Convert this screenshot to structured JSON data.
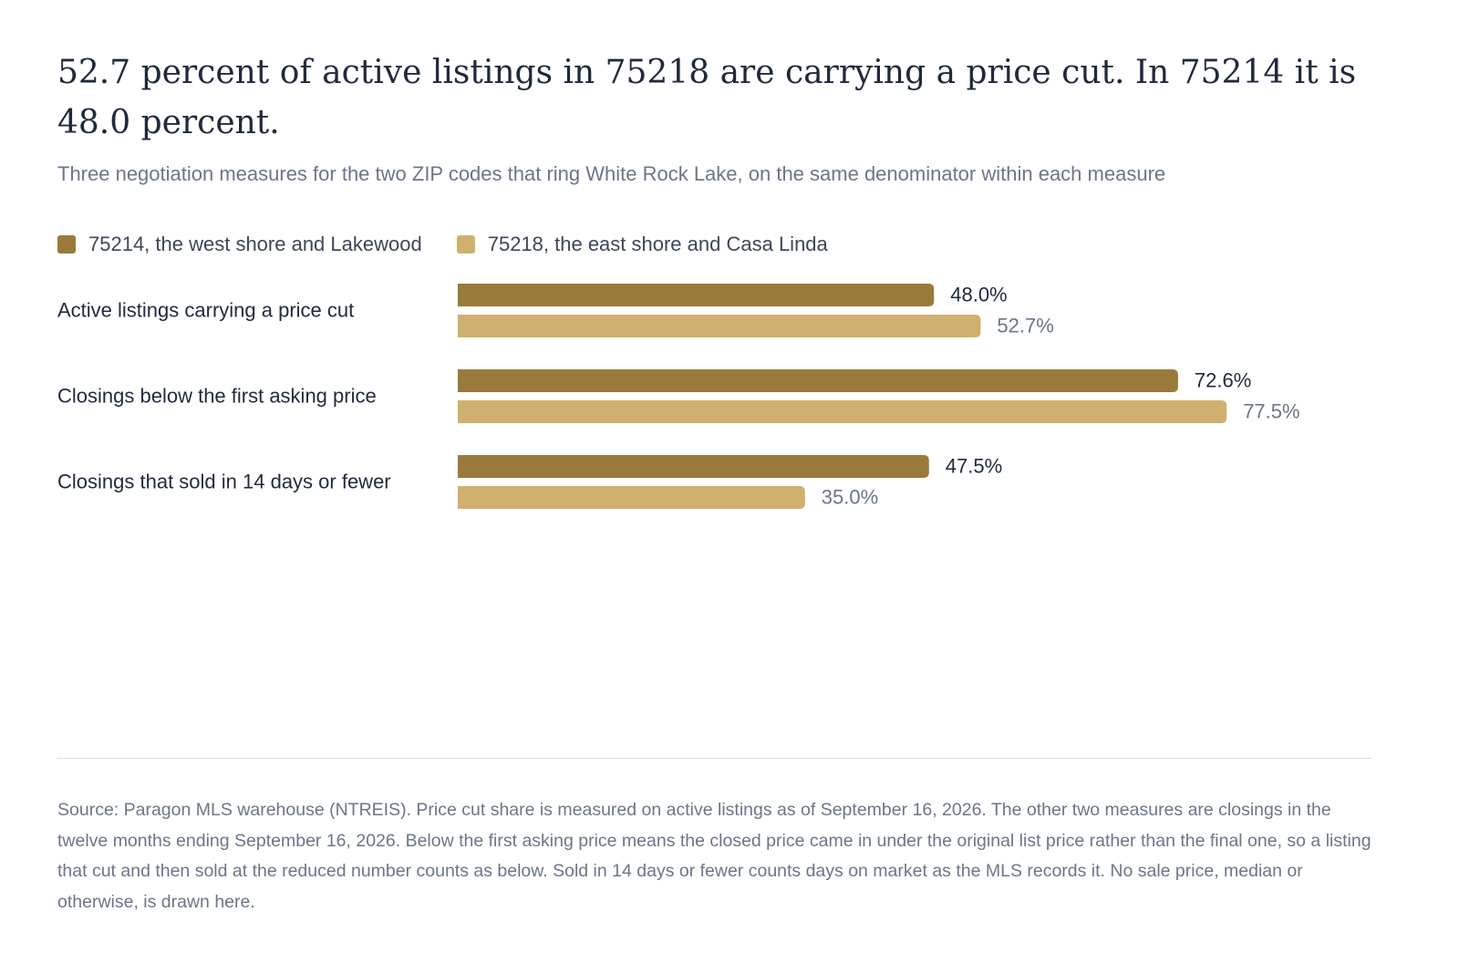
{
  "header": {
    "title": "52.7 percent of active listings in 75218 are carrying a price cut. In 75214 it is 48.0 percent.",
    "subtitle": "Three negotiation measures for the two ZIP codes that ring White Rock Lake, on the same denominator within each measure"
  },
  "legend": [
    {
      "label": "75214, the west shore and Lakewood",
      "color": "#9a7a3a"
    },
    {
      "label": "75218, the east shore and Casa Linda",
      "color": "#cfb06f"
    }
  ],
  "chart_data": {
    "type": "bar",
    "orientation": "horizontal",
    "categories": [
      "Active listings carrying a price cut",
      "Closings below the first asking price",
      "Closings that sold in 14 days or fewer"
    ],
    "series": [
      {
        "name": "75214, the west shore and Lakewood",
        "values": [
          48.0,
          72.6,
          47.5
        ],
        "labels": [
          "48.0%",
          "72.6%",
          "47.5%"
        ],
        "color": "#9a7a3a",
        "label_color": "#1f2a3c"
      },
      {
        "name": "75218, the east shore and Casa Linda",
        "values": [
          52.7,
          77.5,
          35.0
        ],
        "labels": [
          "52.7%",
          "77.5%",
          "35.0%"
        ],
        "color": "#cfb06f",
        "label_color": "#6b7688"
      }
    ],
    "xlim": [
      0,
      100
    ],
    "grid": false,
    "legend_position": "top-left"
  },
  "footer": {
    "source": "Source: Paragon MLS warehouse (NTREIS). Price cut share is measured on active listings as of September 16, 2026. The other two measures are closings in the twelve months ending September 16, 2026. Below the first asking price means the closed price came in under the original list price rather than the final one, so a listing that cut and then sold at the reduced number counts as below. Sold in 14 days or fewer counts days on market as the MLS records it. No sale price, median or otherwise, is drawn here."
  }
}
